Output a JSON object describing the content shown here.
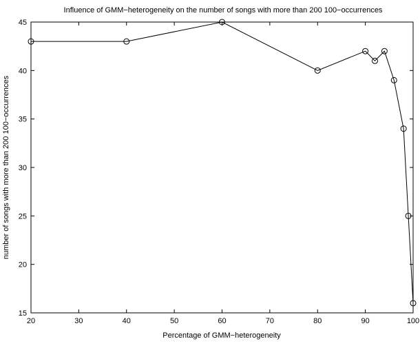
{
  "chart_data": {
    "type": "line",
    "title": "Influence of GMM−heterogeneity on the number of songs with more than 200 100−occurrences",
    "xlabel": "Percentage of GMM−heterogeneity",
    "ylabel": "number of songs with more than 200 100−occurrences",
    "xlim": [
      20,
      100
    ],
    "ylim": [
      15,
      45
    ],
    "xticks": [
      20,
      30,
      40,
      50,
      60,
      70,
      80,
      90,
      100
    ],
    "yticks": [
      15,
      20,
      25,
      30,
      35,
      40,
      45
    ],
    "grid": false,
    "marker": "circle",
    "line_color": "#000000",
    "series": [
      {
        "x": [
          20,
          40,
          60,
          80,
          90,
          92,
          94,
          96,
          98,
          99,
          100
        ],
        "y": [
          43,
          43,
          45,
          40,
          42,
          41,
          42,
          39,
          34,
          25,
          16
        ]
      }
    ]
  }
}
